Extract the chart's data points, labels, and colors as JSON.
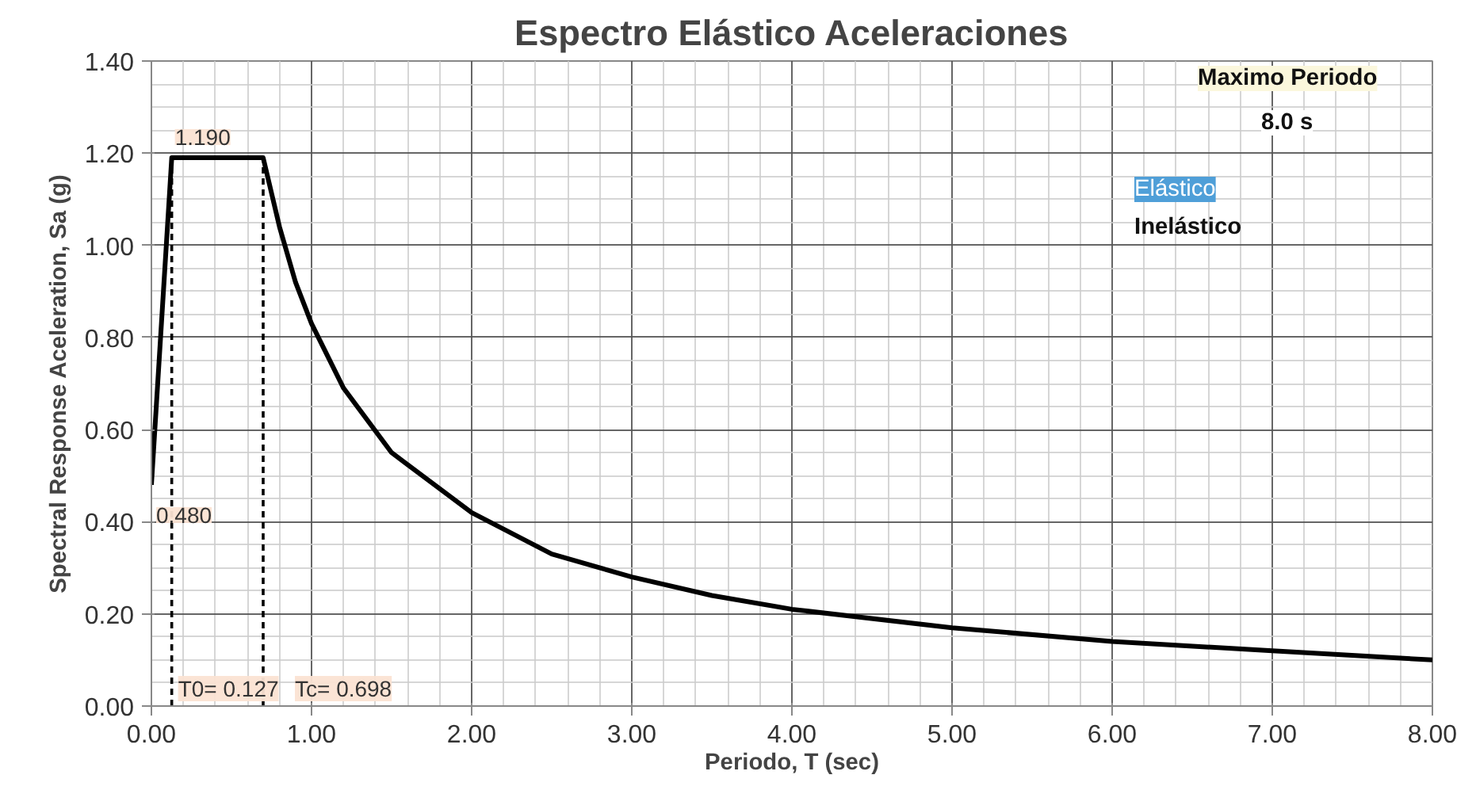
{
  "chart_data": {
    "type": "line",
    "title": "Espectro Elástico Aceleraciones",
    "xlabel": "Periodo, T (sec)",
    "ylabel": "Spectral Response Aceleration, Sa (g)",
    "xlim": [
      0,
      8
    ],
    "ylim": [
      0,
      1.4
    ],
    "xticks": [
      {
        "value": 0,
        "label": "0.00"
      },
      {
        "value": 1,
        "label": "1.00"
      },
      {
        "value": 2,
        "label": "2.00"
      },
      {
        "value": 3,
        "label": "3.00"
      },
      {
        "value": 4,
        "label": "4.00"
      },
      {
        "value": 5,
        "label": "5.00"
      },
      {
        "value": 6,
        "label": "6.00"
      },
      {
        "value": 7,
        "label": "7.00"
      },
      {
        "value": 8,
        "label": "8.00"
      }
    ],
    "yticks": [
      {
        "value": 0,
        "label": "0.00"
      },
      {
        "value": 0.2,
        "label": "0.20"
      },
      {
        "value": 0.4,
        "label": "0.40"
      },
      {
        "value": 0.6,
        "label": "0.60"
      },
      {
        "value": 0.8,
        "label": "0.80"
      },
      {
        "value": 1.0,
        "label": "1.00"
      },
      {
        "value": 1.2,
        "label": "1.20"
      },
      {
        "value": 1.4,
        "label": "1.40"
      }
    ],
    "grid": true,
    "marker": "none",
    "series": [
      {
        "color": "#000000",
        "line_style": "solid",
        "x": [
          0,
          0.127,
          0.698,
          0.8,
          0.9,
          1,
          1.2,
          1.5,
          2,
          2.5,
          3,
          3.5,
          4,
          5,
          6,
          7,
          8
        ],
        "values": [
          0.48,
          1.19,
          1.19,
          1.04,
          0.92,
          0.83,
          0.69,
          0.55,
          0.42,
          0.33,
          0.28,
          0.24,
          0.21,
          0.17,
          0.14,
          0.12,
          0.1
        ]
      },
      {
        "color": "#000000",
        "line_style": "dashed",
        "x": [
          0.127,
          0.127
        ],
        "values": [
          0,
          1.19
        ]
      },
      {
        "color": "#000000",
        "line_style": "dashed",
        "x": [
          0.698,
          0.698
        ],
        "values": [
          0,
          1.19
        ]
      }
    ],
    "annotations": [
      {
        "text": "1.190",
        "x": 0.127,
        "y": 1.19
      },
      {
        "text": "0.480",
        "x": 0,
        "y": 0.48
      },
      {
        "text": "T0= 0.127",
        "x": 0.127,
        "y": 0
      },
      {
        "text": "Tc= 0.698",
        "x": 0.698,
        "y": 0
      },
      "Maximo Periodo",
      "8.0 s",
      "Elástico",
      "Inelástico"
    ]
  }
}
